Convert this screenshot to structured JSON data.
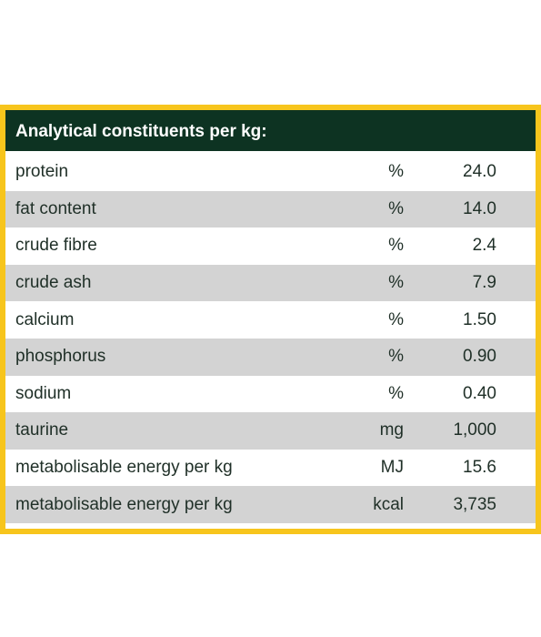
{
  "table": {
    "title": "Analytical constituents per kg:",
    "rows": [
      {
        "name": "protein",
        "unit": "%",
        "value": "24.0"
      },
      {
        "name": "fat content",
        "unit": "%",
        "value": "14.0"
      },
      {
        "name": "crude fibre",
        "unit": "%",
        "value": "2.4"
      },
      {
        "name": "crude ash",
        "unit": "%",
        "value": "7.9"
      },
      {
        "name": "calcium",
        "unit": "%",
        "value": "1.50"
      },
      {
        "name": "phosphorus",
        "unit": "%",
        "value": "0.90"
      },
      {
        "name": "sodium",
        "unit": "%",
        "value": "0.40"
      },
      {
        "name": "taurine",
        "unit": "mg",
        "value": "1,000"
      },
      {
        "name": "metabolisable energy per kg",
        "unit": "MJ",
        "value": "15.6"
      },
      {
        "name": "metabolisable energy per kg",
        "unit": "kcal",
        "value": "3,735"
      }
    ]
  },
  "colors": {
    "border": "#f7c51c",
    "header_bg": "#0d3322",
    "row_alt_bg": "#d3d3d3",
    "text": "#1f2f27"
  }
}
